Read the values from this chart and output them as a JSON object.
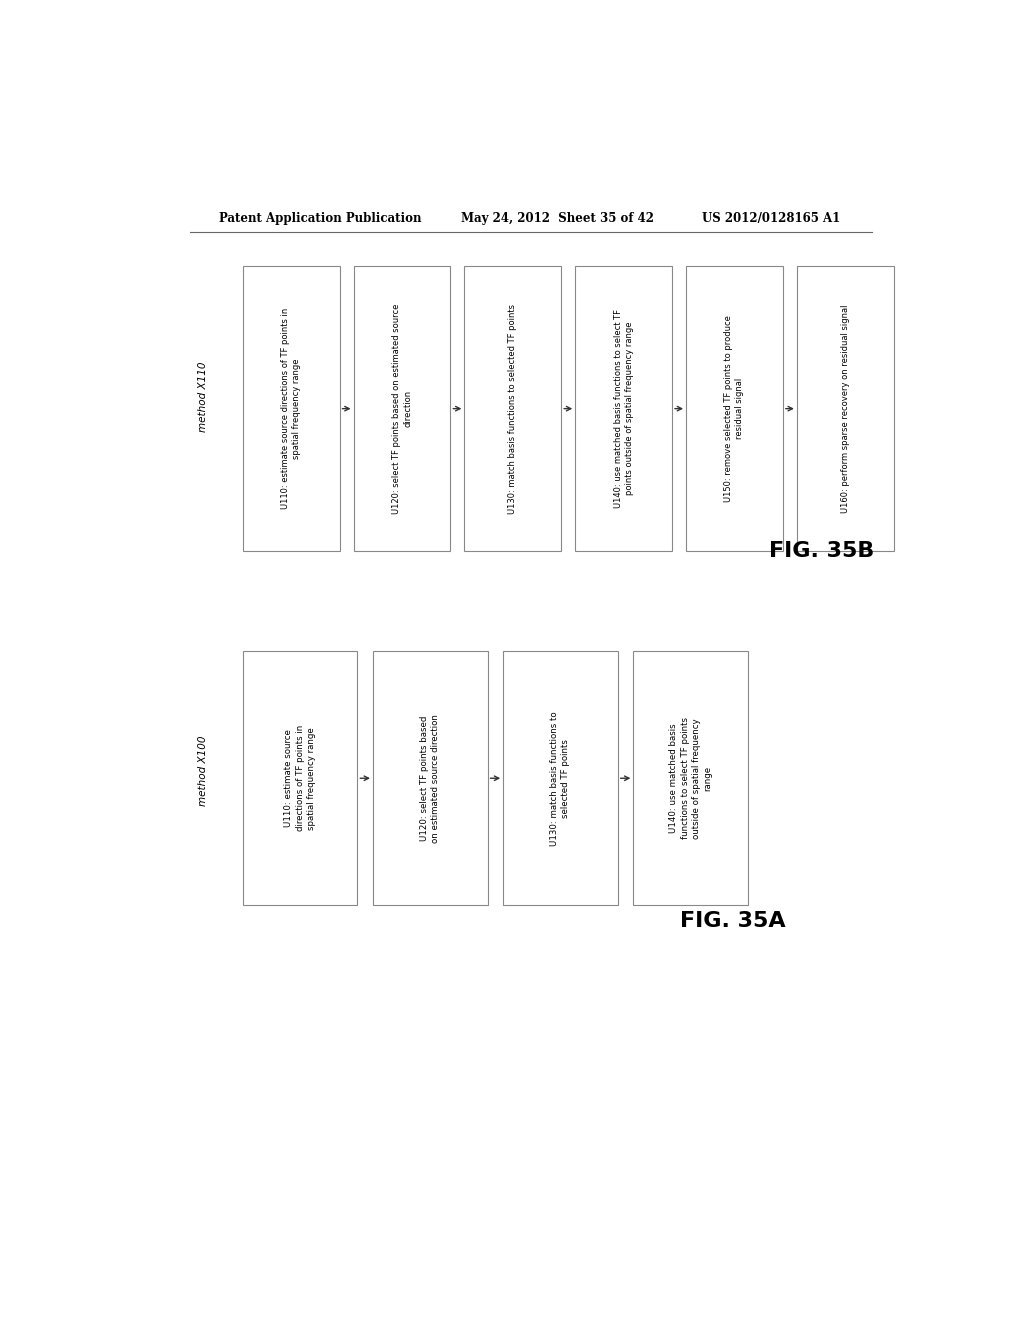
{
  "bg_color": "#ffffff",
  "header_left": "Patent Application Publication",
  "header_mid": "May 24, 2012  Sheet 35 of 42",
  "header_right": "US 2012/0128165 A1",
  "fig_b": {
    "method_label": "method X110",
    "figure_label": "FIG. 35B",
    "boxes": [
      "U110: estimate source directions of TF points in\nspatial frequency range",
      "U120: select TF points based on estimated source\ndirection",
      "U130: match basis functions to selected TF points",
      "U140: use matched basis functions to select TF\npoints outside of spatial frequency range",
      "U150: remove selected TF points to produce\nresidual signal",
      "U160: perform sparse recovery on residual signal"
    ]
  },
  "fig_a": {
    "method_label": "method X100",
    "figure_label": "FIG. 35A",
    "boxes": [
      "U110: estimate source\ndirections of TF points in\nspatial frequency range",
      "U120: select TF points based\non estimated source direction",
      "U130: match basis functions to\nselected TF points",
      "U140: use matched basis\nfunctions to select TF points\noutside of spatial frequency\nrange"
    ]
  },
  "box_edge_color": "#888888",
  "box_face_color": "#ffffff",
  "text_color": "#000000",
  "arrow_color": "#333333",
  "font_size_header": 8.5,
  "font_size_method": 7.5,
  "font_size_box_b": 6.0,
  "font_size_box_a": 6.2,
  "font_size_fig": 16
}
